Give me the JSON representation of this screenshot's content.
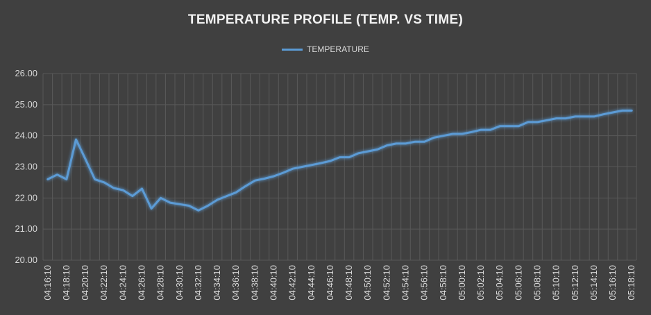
{
  "chart_data": {
    "type": "line",
    "title": "TEMPERATURE PROFILE (TEMP. VS TIME)",
    "xlabel": "",
    "ylabel": "",
    "ylim": [
      20.0,
      26.0
    ],
    "yticks": [
      "20.00",
      "21.00",
      "22.00",
      "23.00",
      "24.00",
      "25.00",
      "26.00"
    ],
    "grid": true,
    "legend_position": "top",
    "line_color": "#5b9bd5",
    "x_tick_labels": [
      "04:16:10",
      "04:18:10",
      "04:20:10",
      "04:22:10",
      "04:24:10",
      "04:26:10",
      "04:28:10",
      "04:30:10",
      "04:32:10",
      "04:34:10",
      "04:36:10",
      "04:38:10",
      "04:40:10",
      "04:42:10",
      "04:44:10",
      "04:46:10",
      "04:48:10",
      "04:50:10",
      "04:52:10",
      "04:54:10",
      "04:56:10",
      "04:58:10",
      "05:00:10",
      "05:02:10",
      "05:04:10",
      "05:06:10",
      "05:08:10",
      "05:10:10",
      "05:12:10",
      "05:14:10",
      "05:16:10",
      "05:18:10"
    ],
    "x": [
      "04:16:10",
      "04:17:10",
      "04:18:10",
      "04:19:10",
      "04:20:10",
      "04:21:10",
      "04:22:10",
      "04:23:10",
      "04:24:10",
      "04:25:10",
      "04:26:10",
      "04:27:10",
      "04:28:10",
      "04:29:10",
      "04:30:10",
      "04:31:10",
      "04:32:10",
      "04:33:10",
      "04:34:10",
      "04:35:10",
      "04:36:10",
      "04:37:10",
      "04:38:10",
      "04:39:10",
      "04:40:10",
      "04:41:10",
      "04:42:10",
      "04:43:10",
      "04:44:10",
      "04:45:10",
      "04:46:10",
      "04:47:10",
      "04:48:10",
      "04:49:10",
      "04:50:10",
      "04:51:10",
      "04:52:10",
      "04:53:10",
      "04:54:10",
      "04:55:10",
      "04:56:10",
      "04:57:10",
      "04:58:10",
      "04:59:10",
      "05:00:10",
      "05:01:10",
      "05:02:10",
      "05:03:10",
      "05:04:10",
      "05:05:10",
      "05:06:10",
      "05:07:10",
      "05:08:10",
      "05:09:10",
      "05:10:10",
      "05:11:10",
      "05:12:10",
      "05:13:10",
      "05:14:10",
      "05:15:10",
      "05:16:10",
      "05:17:10",
      "05:18:10"
    ],
    "series": [
      {
        "name": "TEMPERATURE",
        "values": [
          22.6,
          22.75,
          22.6,
          23.88,
          23.25,
          22.6,
          22.5,
          22.32,
          22.25,
          22.06,
          22.3,
          21.66,
          22.0,
          21.85,
          21.8,
          21.75,
          21.6,
          21.75,
          21.94,
          22.06,
          22.18,
          22.38,
          22.56,
          22.62,
          22.7,
          22.81,
          22.94,
          23.0,
          23.06,
          23.12,
          23.19,
          23.31,
          23.31,
          23.44,
          23.5,
          23.56,
          23.69,
          23.75,
          23.75,
          23.81,
          23.81,
          23.94,
          24.0,
          24.06,
          24.06,
          24.12,
          24.19,
          24.19,
          24.31,
          24.31,
          24.31,
          24.44,
          24.44,
          24.5,
          24.56,
          24.56,
          24.62,
          24.62,
          24.62,
          24.69,
          24.75,
          24.81,
          24.81
        ]
      }
    ]
  }
}
